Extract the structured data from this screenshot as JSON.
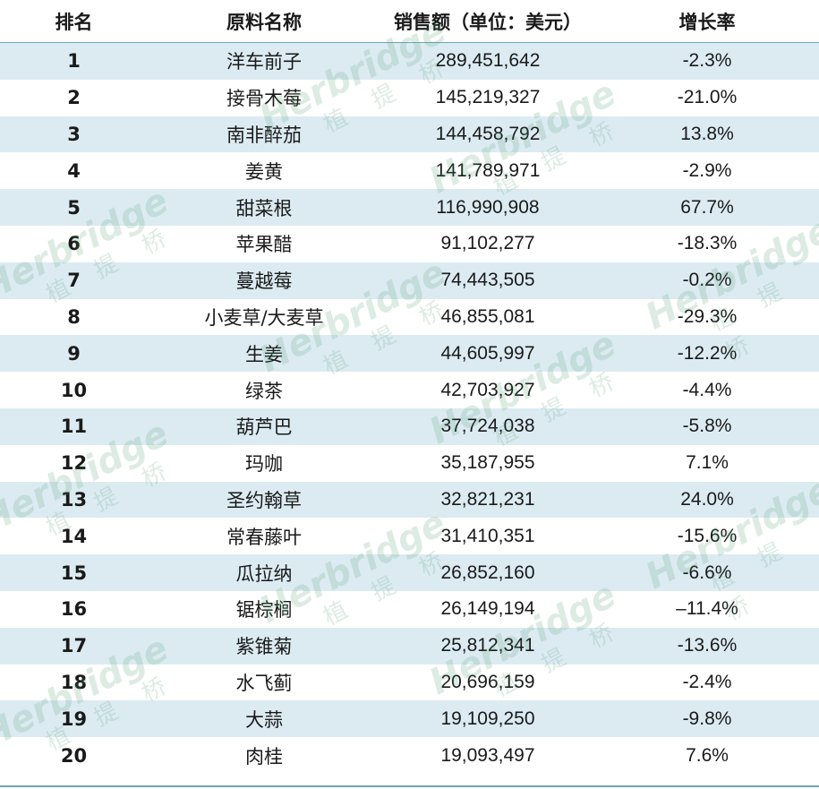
{
  "header": {
    "rank": "排名",
    "name": "原料名称",
    "sales": "销售额（单位：美元）",
    "growth": "增长率"
  },
  "rows": [
    {
      "rank": "1",
      "name": "洋车前子",
      "sales": "289,451,642",
      "growth": "-2.3%"
    },
    {
      "rank": "2",
      "name": "接骨木莓",
      "sales": "145,219,327",
      "growth": "-21.0%"
    },
    {
      "rank": "3",
      "name": "南非醉茄",
      "sales": "144,458,792",
      "growth": "13.8%"
    },
    {
      "rank": "4",
      "name": "姜黄",
      "sales": "141,789,971",
      "growth": "-2.9%"
    },
    {
      "rank": "5",
      "name": "甜菜根",
      "sales": "116,990,908",
      "growth": "67.7%"
    },
    {
      "rank": "6",
      "name": "苹果醋",
      "sales": "91,102,277",
      "growth": "-18.3%"
    },
    {
      "rank": "7",
      "name": "蔓越莓",
      "sales": "74,443,505",
      "growth": "-0.2%"
    },
    {
      "rank": "8",
      "name": "小麦草/大麦草",
      "sales": "46,855,081",
      "growth": "-29.3%"
    },
    {
      "rank": "9",
      "name": "生姜",
      "sales": "44,605,997",
      "growth": "-12.2%"
    },
    {
      "rank": "10",
      "name": "绿茶",
      "sales": "42,703,927",
      "growth": "-4.4%"
    },
    {
      "rank": "11",
      "name": "葫芦巴",
      "sales": "37,724,038",
      "growth": "-5.8%"
    },
    {
      "rank": "12",
      "name": "玛咖",
      "sales": "35,187,955",
      "growth": "7.1%"
    },
    {
      "rank": "13",
      "name": "圣约翰草",
      "sales": "32,821,231",
      "growth": "24.0%"
    },
    {
      "rank": "14",
      "name": "常春藤叶",
      "sales": "31,410,351",
      "growth": "-15.6%"
    },
    {
      "rank": "15",
      "name": "瓜拉纳",
      "sales": "26,852,160",
      "growth": "-6.6%"
    },
    {
      "rank": "16",
      "name": "锯棕榈",
      "sales": "26,149,194",
      "growth": "–11.4%"
    },
    {
      "rank": "17",
      "name": "紫锥菊",
      "sales": "25,812,341",
      "growth": "-13.6%"
    },
    {
      "rank": "18",
      "name": "水飞蓟",
      "sales": "20,696,159",
      "growth": "-2.4%"
    },
    {
      "rank": "19",
      "name": "大蒜",
      "sales": "19,109,250",
      "growth": "-9.8%"
    },
    {
      "rank": "20",
      "name": "肉桂",
      "sales": "19,093,497",
      "growth": "7.6%"
    }
  ],
  "watermark": {
    "brand": "Herbridge",
    "sub": "植提桥"
  },
  "colors": {
    "row_shade": "#dcebf2",
    "row_plain": "#ffffff",
    "rule": "#6fa3b4",
    "watermark": "#4a9a6a"
  }
}
